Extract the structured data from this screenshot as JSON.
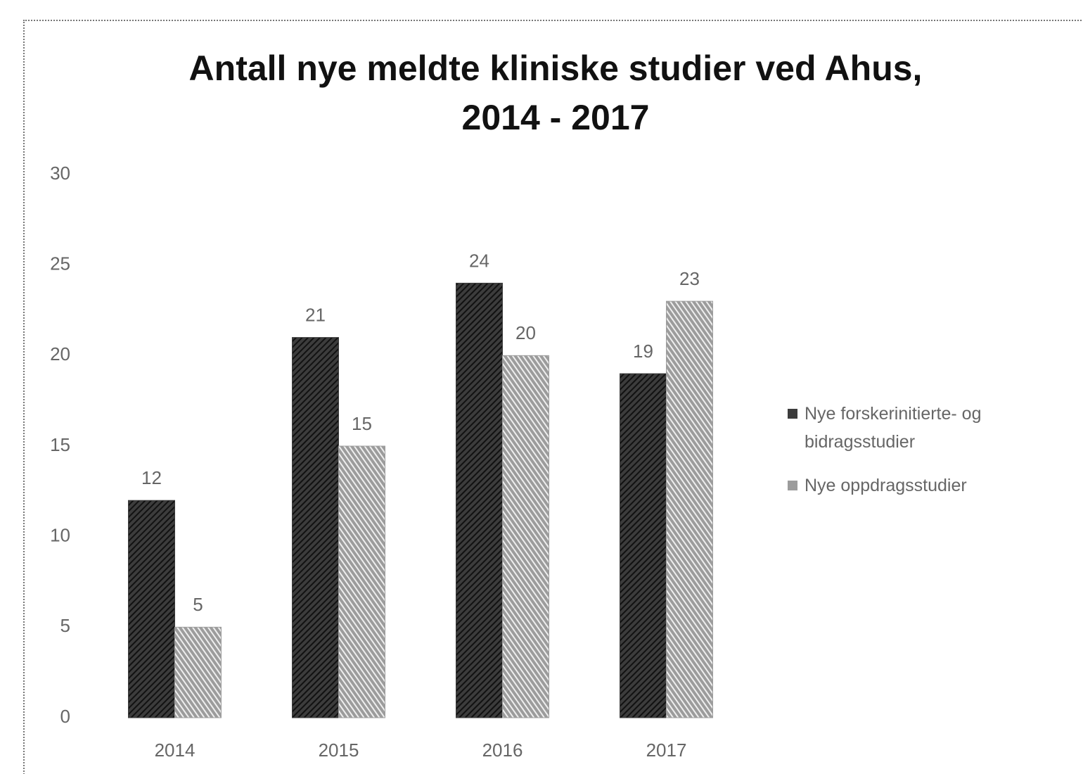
{
  "chart_data": {
    "type": "bar",
    "title": "Antall nye meldte kliniske studier ved Ahus, 2014 - 2017",
    "categories": [
      "2014",
      "2015",
      "2016",
      "2017"
    ],
    "series": [
      {
        "name": "Nye forskerinitierte- og bidragsstudier",
        "color": "#3c3c3c",
        "values": [
          12,
          21,
          24,
          19
        ]
      },
      {
        "name": "Nye oppdragsstudier",
        "color": "#9c9c9c",
        "values": [
          5,
          15,
          20,
          23
        ]
      }
    ],
    "ylim": [
      0,
      30
    ],
    "yticks": [
      0,
      5,
      10,
      15,
      20,
      25,
      30
    ],
    "grid": false,
    "data_labels": true,
    "legend": "right"
  }
}
